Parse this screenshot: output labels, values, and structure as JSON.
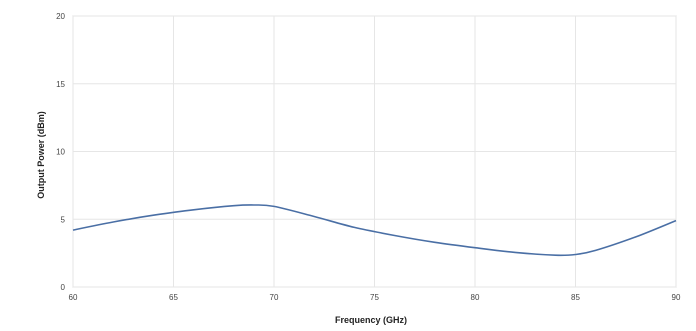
{
  "chart_data": {
    "type": "line",
    "title": "",
    "xlabel": "Frequency (GHz)",
    "ylabel": "Output Power (dBm)",
    "xlim": [
      60,
      90
    ],
    "ylim": [
      0,
      20
    ],
    "x_ticks": [
      60,
      65,
      70,
      75,
      80,
      85,
      90
    ],
    "y_ticks": [
      0,
      5,
      10,
      15,
      20
    ],
    "grid": true,
    "legend": "none",
    "series": [
      {
        "color": "#4a6fa5",
        "x": [
          60,
          62,
          64,
          66,
          68,
          69,
          70,
          72,
          74,
          76,
          78,
          80,
          82,
          84,
          85,
          86,
          88,
          90
        ],
        "y": [
          4.2,
          4.8,
          5.3,
          5.7,
          6.0,
          6.05,
          5.95,
          5.2,
          4.4,
          3.8,
          3.3,
          2.9,
          2.55,
          2.35,
          2.4,
          2.7,
          3.7,
          4.9
        ]
      }
    ]
  }
}
